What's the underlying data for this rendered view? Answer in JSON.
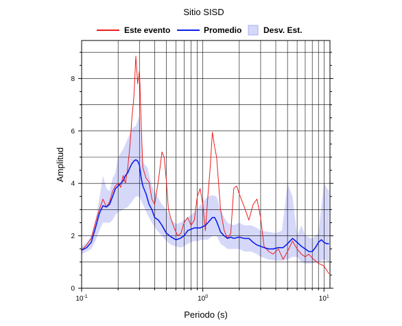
{
  "chart_data": {
    "type": "line",
    "title": "Sitio SISD",
    "xlabel": "Periodo (s)",
    "ylabel": "Amplitud",
    "xscale": "log",
    "xlim": [
      0.1,
      11.2
    ],
    "ylim": [
      0,
      9.45
    ],
    "x_ticks": [
      {
        "value": 0.1,
        "base": "10",
        "exp": "-1"
      },
      {
        "value": 1,
        "base": "10",
        "exp": "0"
      },
      {
        "value": 10,
        "base": "10",
        "exp": "1"
      }
    ],
    "y_ticks": [
      0,
      2,
      4,
      6,
      8
    ],
    "y_tick_labels": [
      "0",
      "2",
      "4",
      "6",
      "8"
    ],
    "grid": true,
    "legend_position": "top",
    "legend": {
      "event_label": "Este evento",
      "mean_label": "Promedio",
      "std_label": "Desv. Est."
    },
    "colors": {
      "event": "#ee1c1c",
      "mean": "#0a1ee8",
      "std_fill": "#d6d8fa",
      "grid": "#000000"
    },
    "series": [
      {
        "name": "Este evento",
        "x": [
          0.1,
          0.11,
          0.12,
          0.13,
          0.14,
          0.15,
          0.16,
          0.17,
          0.18,
          0.19,
          0.2,
          0.21,
          0.22,
          0.23,
          0.24,
          0.25,
          0.26,
          0.27,
          0.28,
          0.29,
          0.3,
          0.31,
          0.32,
          0.34,
          0.36,
          0.38,
          0.4,
          0.43,
          0.46,
          0.48,
          0.5,
          0.52,
          0.55,
          0.58,
          0.62,
          0.66,
          0.7,
          0.75,
          0.8,
          0.85,
          0.9,
          0.95,
          1.0,
          1.05,
          1.1,
          1.15,
          1.2,
          1.25,
          1.3,
          1.4,
          1.5,
          1.6,
          1.7,
          1.8,
          1.9,
          2.0,
          2.2,
          2.4,
          2.6,
          2.8,
          3.0,
          3.2,
          3.5,
          3.8,
          4.2,
          4.6,
          5.0,
          5.5,
          6.0,
          6.5,
          7.0,
          7.5,
          8.0,
          9.0,
          10.0,
          11.0
        ],
        "values": [
          1.45,
          1.65,
          1.9,
          2.5,
          3.0,
          3.4,
          3.1,
          3.3,
          3.7,
          3.9,
          4.0,
          3.85,
          4.3,
          4.0,
          4.6,
          5.4,
          6.5,
          7.3,
          8.85,
          7.8,
          8.3,
          6.3,
          4.6,
          4.2,
          4.05,
          3.4,
          3.2,
          4.1,
          5.2,
          5.0,
          4.1,
          3.0,
          2.6,
          2.3,
          2.0,
          2.1,
          2.5,
          2.7,
          2.4,
          2.6,
          3.5,
          3.8,
          3.2,
          2.2,
          3.5,
          4.6,
          5.95,
          5.4,
          5.0,
          3.0,
          2.2,
          1.9,
          2.1,
          3.8,
          3.9,
          3.6,
          3.1,
          2.6,
          3.2,
          3.4,
          2.7,
          1.6,
          1.4,
          1.3,
          1.5,
          1.1,
          1.4,
          1.8,
          1.5,
          1.3,
          1.2,
          1.3,
          1.15,
          0.95,
          0.85,
          0.55
        ]
      },
      {
        "name": "Promedio",
        "x": [
          0.1,
          0.11,
          0.12,
          0.13,
          0.14,
          0.15,
          0.16,
          0.17,
          0.18,
          0.19,
          0.2,
          0.21,
          0.22,
          0.23,
          0.24,
          0.25,
          0.26,
          0.27,
          0.28,
          0.29,
          0.3,
          0.31,
          0.32,
          0.34,
          0.36,
          0.38,
          0.4,
          0.43,
          0.46,
          0.5,
          0.55,
          0.6,
          0.65,
          0.7,
          0.75,
          0.8,
          0.85,
          0.9,
          0.95,
          1.0,
          1.05,
          1.1,
          1.15,
          1.2,
          1.25,
          1.3,
          1.4,
          1.5,
          1.6,
          1.7,
          1.8,
          2.0,
          2.2,
          2.4,
          2.6,
          2.8,
          3.0,
          3.2,
          3.5,
          3.8,
          4.2,
          4.6,
          5.0,
          5.5,
          6.0,
          6.5,
          7.0,
          7.5,
          8.0,
          8.5,
          9.0,
          9.5,
          10.0,
          10.5,
          11.0
        ],
        "values": [
          1.45,
          1.55,
          1.75,
          2.3,
          2.85,
          3.15,
          3.1,
          3.2,
          3.5,
          3.8,
          3.9,
          4.0,
          4.1,
          4.3,
          4.4,
          4.6,
          4.75,
          4.85,
          4.9,
          4.85,
          4.7,
          4.2,
          3.9,
          3.6,
          3.2,
          3.0,
          2.7,
          2.6,
          2.4,
          2.1,
          1.95,
          1.85,
          1.9,
          2.0,
          2.2,
          2.25,
          2.3,
          2.3,
          2.3,
          2.35,
          2.4,
          2.5,
          2.6,
          2.7,
          2.7,
          2.55,
          2.15,
          2.0,
          1.9,
          1.95,
          1.9,
          1.95,
          1.9,
          1.9,
          1.75,
          1.65,
          1.6,
          1.55,
          1.5,
          1.5,
          1.55,
          1.55,
          1.7,
          1.9,
          1.75,
          1.6,
          1.5,
          1.4,
          1.4,
          1.55,
          1.75,
          1.85,
          1.75,
          1.7,
          1.7
        ]
      },
      {
        "name": "Desv. Est.",
        "x": [
          0.1,
          0.11,
          0.12,
          0.13,
          0.14,
          0.15,
          0.16,
          0.17,
          0.18,
          0.19,
          0.2,
          0.22,
          0.24,
          0.26,
          0.28,
          0.3,
          0.32,
          0.35,
          0.38,
          0.42,
          0.46,
          0.5,
          0.55,
          0.6,
          0.65,
          0.7,
          0.75,
          0.8,
          0.85,
          0.9,
          1.0,
          1.1,
          1.2,
          1.3,
          1.4,
          1.5,
          1.6,
          1.8,
          2.0,
          2.2,
          2.5,
          2.8,
          3.0,
          3.5,
          4.0,
          4.5,
          5.0,
          5.5,
          6.0,
          6.5,
          7.0,
          8.0,
          9.0,
          10.0,
          11.0
        ],
        "lower": [
          1.3,
          1.4,
          1.5,
          1.8,
          2.2,
          2.5,
          2.5,
          2.5,
          2.6,
          2.8,
          2.9,
          3.0,
          3.1,
          3.3,
          3.5,
          3.5,
          3.2,
          2.8,
          2.5,
          2.2,
          2.0,
          1.8,
          1.65,
          1.6,
          1.55,
          1.6,
          1.7,
          1.75,
          1.8,
          1.8,
          1.85,
          1.85,
          2.0,
          2.0,
          1.7,
          1.6,
          1.5,
          1.5,
          1.5,
          1.4,
          1.4,
          1.3,
          1.2,
          1.1,
          1.05,
          1.05,
          1.1,
          1.2,
          1.2,
          1.0,
          0.95,
          0.95,
          1.0,
          1.1,
          1.0
        ],
        "upper": [
          1.6,
          1.75,
          2.0,
          2.6,
          3.4,
          4.3,
          3.8,
          3.7,
          4.2,
          4.4,
          5.0,
          5.3,
          5.7,
          6.1,
          6.2,
          6.6,
          4.8,
          4.6,
          3.9,
          3.5,
          3.2,
          3.0,
          2.6,
          2.45,
          2.5,
          2.6,
          2.7,
          2.8,
          2.9,
          3.0,
          3.3,
          3.5,
          3.55,
          3.5,
          3.0,
          2.7,
          2.5,
          2.4,
          2.5,
          2.4,
          2.4,
          2.3,
          2.2,
          2.15,
          2.1,
          2.2,
          4.0,
          3.5,
          2.0,
          2.4,
          2.0,
          1.9,
          2.1,
          4.0,
          3.7
        ]
      }
    ]
  }
}
